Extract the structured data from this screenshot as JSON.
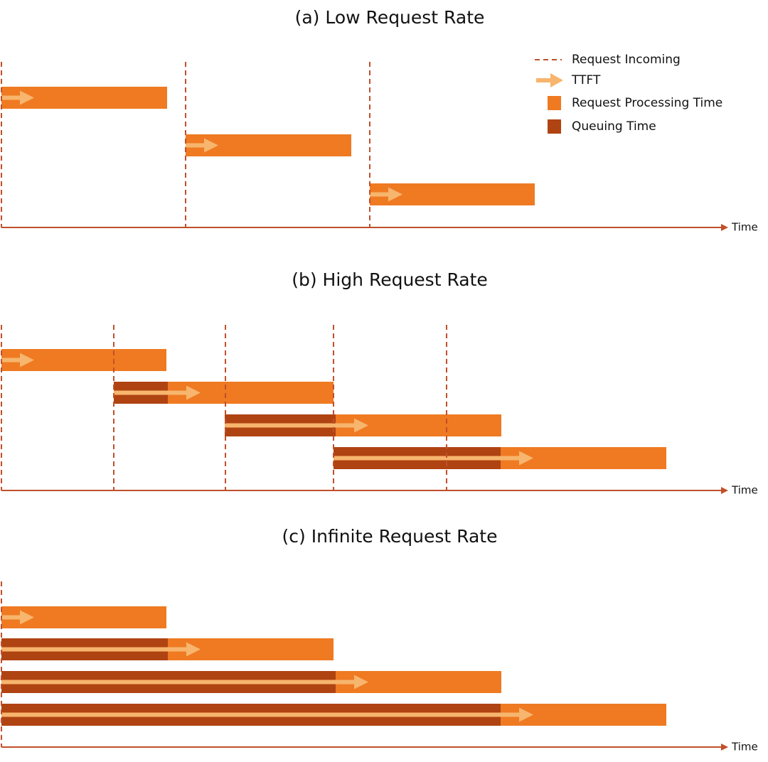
{
  "panels": [
    {
      "title": "(a) Low Request Rate",
      "axis_label": "Time"
    },
    {
      "title": "(b) High Request Rate",
      "axis_label": "Time"
    },
    {
      "title": "(c) Infinite Request Rate",
      "axis_label": "Time"
    }
  ],
  "legend": [
    {
      "label": "Request Incoming"
    },
    {
      "label": "TTFT"
    },
    {
      "label": "Request Processing Time"
    },
    {
      "label": "Queuing Time"
    }
  ]
}
